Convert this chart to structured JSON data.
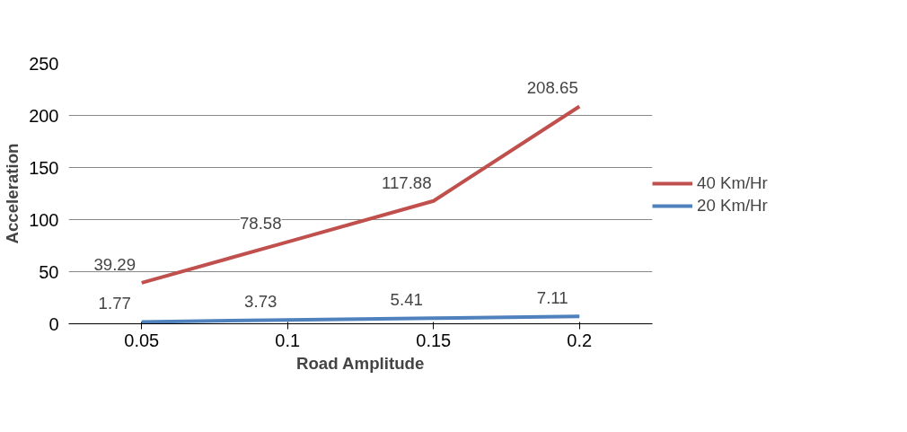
{
  "chart_data": {
    "type": "line",
    "xlabel": "Road Amplitude",
    "ylabel": "Acceleration",
    "categories": [
      "0.05",
      "0.1",
      "0.15",
      "0.2"
    ],
    "series": [
      {
        "name": "40 Km/Hr",
        "color": "#c0504d",
        "values": [
          39.29,
          78.58,
          117.88,
          208.65
        ]
      },
      {
        "name": "20 Km/Hr",
        "color": "#4f81bd",
        "values": [
          1.77,
          3.73,
          5.41,
          7.11
        ]
      }
    ],
    "ylim": [
      0,
      250
    ],
    "yticks": [
      0,
      50,
      100,
      150,
      200,
      250
    ],
    "grid": "y",
    "legend": "right",
    "data_labels": true,
    "marker": "none",
    "line_style": "solid"
  }
}
